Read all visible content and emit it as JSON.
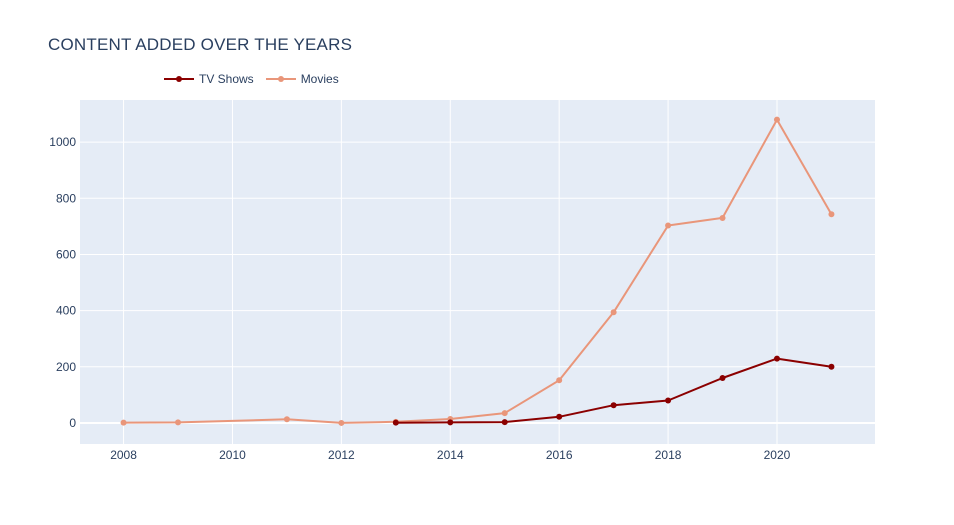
{
  "chart_data": {
    "type": "line",
    "title": "CONTENT ADDED OVER THE YEARS",
    "xlabel": "",
    "ylabel": "",
    "xlim": [
      2007.2,
      2021.8
    ],
    "ylim": [
      -75,
      1150
    ],
    "x_ticks": [
      2008,
      2010,
      2012,
      2014,
      2016,
      2018,
      2020
    ],
    "y_ticks": [
      0,
      200,
      400,
      600,
      800,
      1000
    ],
    "grid": true,
    "legend_position": "top-left",
    "series": [
      {
        "name": "TV Shows",
        "color": "#8b0000",
        "x": [
          2013,
          2014,
          2015,
          2016,
          2017,
          2018,
          2019,
          2020,
          2021
        ],
        "values": [
          1,
          2,
          3,
          22,
          63,
          80,
          160,
          229,
          200
        ]
      },
      {
        "name": "Movies",
        "color": "#e9967a",
        "x": [
          2008,
          2009,
          2011,
          2012,
          2013,
          2014,
          2015,
          2016,
          2017,
          2018,
          2019,
          2020,
          2021
        ],
        "values": [
          1,
          2,
          13,
          0,
          4,
          14,
          35,
          152,
          394,
          703,
          730,
          1080,
          743
        ]
      }
    ]
  }
}
